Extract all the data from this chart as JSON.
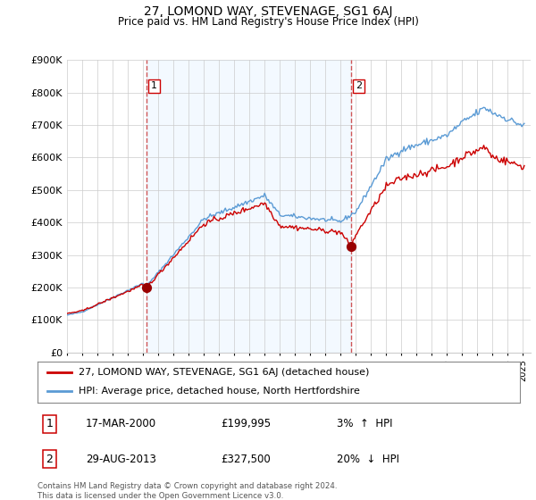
{
  "title": "27, LOMOND WAY, STEVENAGE, SG1 6AJ",
  "subtitle": "Price paid vs. HM Land Registry's House Price Index (HPI)",
  "ylim": [
    0,
    900000
  ],
  "sale1_year_dec": 2000.21,
  "sale1_price": 199995,
  "sale2_year_dec": 2013.66,
  "sale2_price": 327500,
  "line_color_property": "#cc0000",
  "line_color_hpi": "#5b9bd5",
  "shade_color": "#ddeeff",
  "marker_color": "#990000",
  "vline_color": "#cc4444",
  "legend_box_label1": "27, LOMOND WAY, STEVENAGE, SG1 6AJ (detached house)",
  "legend_box_label2": "HPI: Average price, detached house, North Hertfordshire",
  "footer": "Contains HM Land Registry data © Crown copyright and database right 2024.\nThis data is licensed under the Open Government Licence v3.0.",
  "background_color": "#ffffff",
  "grid_color": "#cccccc",
  "shade_alpha": 0.35
}
